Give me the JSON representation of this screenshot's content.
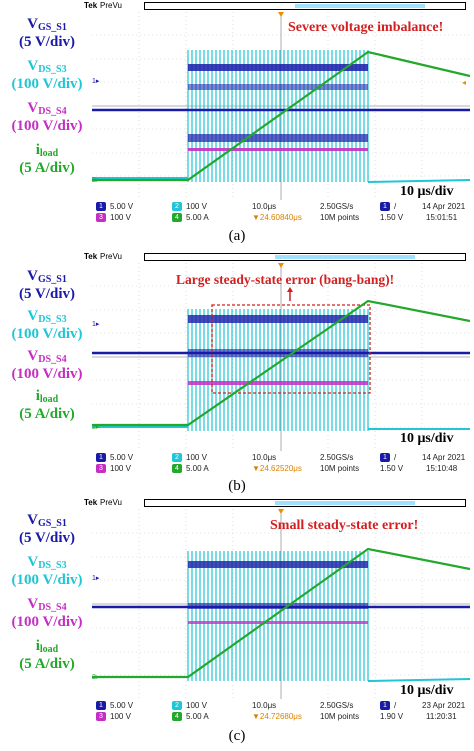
{
  "colors": {
    "ch1": "#1a1aa8",
    "ch2": "#1ec6d6",
    "ch3": "#c42ec4",
    "ch4": "#22a82a",
    "annotation": "#d22020",
    "trigger": "#f08c00"
  },
  "common": {
    "tek": "Tek",
    "prevu": "PreVu",
    "labels": [
      {
        "main": "V",
        "sub": "GS_S1",
        "scale": "(5 V/div)",
        "color": "#1a1aa8"
      },
      {
        "main": "V",
        "sub": "DS_S3",
        "scale": "(100 V/div)",
        "color": "#1ec6d6"
      },
      {
        "main": "V",
        "sub": "DS_S4",
        "scale": "(100 V/div)",
        "color": "#c42ec4"
      },
      {
        "main": "i",
        "sub": "load",
        "scale": "(5 A/div)",
        "color": "#22a82a"
      }
    ],
    "timescale": "10 μs/div",
    "ch1": "5.00 V",
    "ch2": "100 V",
    "ch3": "100 V",
    "ch4": "5.00 A",
    "timebase": "10.0μs",
    "samplerate": "2.50GS/s",
    "points": "10M points"
  },
  "panels": [
    {
      "caption": "(a)",
      "annotation": "Severe voltage imbalance!",
      "trigger_level": "1.50 V",
      "delay": "▼24.60840μs",
      "date": "14 Apr 2021",
      "time": "15:01:51"
    },
    {
      "caption": "(b)",
      "annotation": "Large steady-state error (bang-bang)!",
      "trigger_level": "1.50 V",
      "delay": "▼24.62520μs",
      "date": "14 Apr 2021",
      "time": "15:10:48"
    },
    {
      "caption": "(c)",
      "annotation": "Small steady-state error!",
      "trigger_level": "1.90 V",
      "delay": "▼24.72680μs",
      "date": "23 Apr 2021",
      "time": "11:20:31"
    }
  ]
}
